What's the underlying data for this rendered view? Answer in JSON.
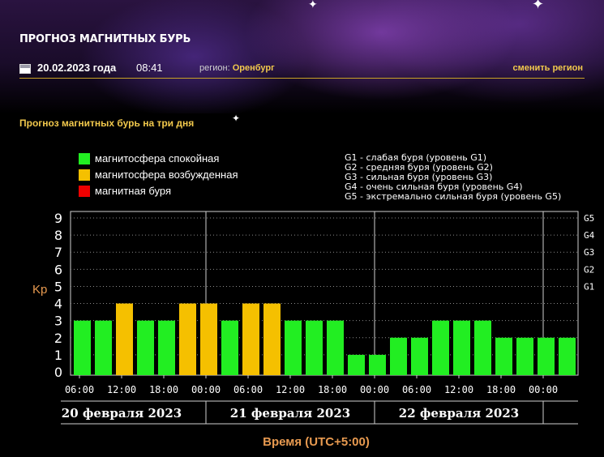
{
  "header": {
    "title": "ПРОГНОЗ МАГНИТНЫХ БУРЬ",
    "date": "20.02.2023 года",
    "time": "08:41",
    "region_label": "регион:",
    "region_value": "Оренбург",
    "change_region": "сменить регион"
  },
  "section_title": "Прогноз магнитных бурь на три дня",
  "legend": [
    {
      "label": "магнитосфера спокойная",
      "color": "#22ee22"
    },
    {
      "label": "магнитосфера возбужденная",
      "color": "#f5c000"
    },
    {
      "label": "магнитная буря",
      "color": "#ee0000"
    }
  ],
  "g_legend": [
    "G1 - слабая буря (уровень G1)",
    "G2 - средняя буря (уровень G2)",
    "G3 - сильная буря (уровень G3)",
    "G4 - очень сильная буря (уровень G4)",
    "G5 - экстремально сильная буря (уровень G5)"
  ],
  "chart_data": {
    "type": "bar",
    "ylabel": "Kp",
    "xlabel": "Время (UTC+5:00)",
    "ylim": [
      0,
      9
    ],
    "yticks": [
      0,
      1,
      2,
      3,
      4,
      5,
      6,
      7,
      8,
      9
    ],
    "right_ticks": [
      {
        "label": "G5",
        "kp": 9
      },
      {
        "label": "G4",
        "kp": 8
      },
      {
        "label": "G3",
        "kp": 7
      },
      {
        "label": "G2",
        "kp": 6
      },
      {
        "label": "G1",
        "kp": 5
      }
    ],
    "time_labels": [
      "06:00",
      "12:00",
      "18:00",
      "00:00",
      "06:00",
      "12:00",
      "18:00",
      "00:00",
      "06:00",
      "12:00",
      "18:00",
      "00:00"
    ],
    "day_labels": [
      "20 февраля 2023",
      "21 февраля 2023",
      "22 февраля 2023"
    ],
    "values": [
      3,
      3,
      4,
      3,
      3,
      4,
      4,
      3,
      4,
      4,
      3,
      3,
      3,
      1,
      1,
      2,
      2,
      3,
      3,
      3,
      2,
      2,
      2,
      2
    ],
    "status": [
      "calm",
      "calm",
      "excited",
      "calm",
      "calm",
      "excited",
      "excited",
      "calm",
      "excited",
      "excited",
      "calm",
      "calm",
      "calm",
      "calm",
      "calm",
      "calm",
      "calm",
      "calm",
      "calm",
      "calm",
      "calm",
      "calm",
      "calm",
      "calm"
    ],
    "status_colors": {
      "calm": "#22ee22",
      "excited": "#f5c000",
      "storm": "#ee0000"
    },
    "grid": true
  }
}
